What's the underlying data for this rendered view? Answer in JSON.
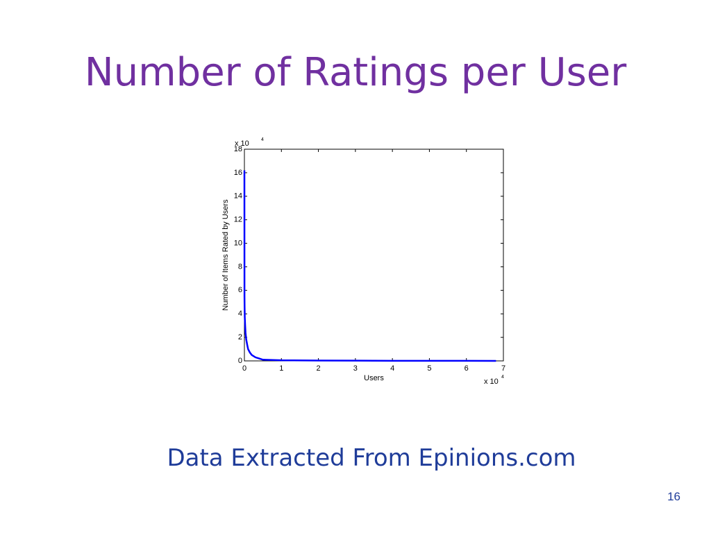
{
  "slide": {
    "title": "Number of Ratings per User",
    "caption": "Data Extracted From Epinions.com",
    "page_number": "16"
  },
  "chart_data": {
    "type": "line",
    "color": "#0000ff",
    "xlabel": "Users",
    "ylabel": "Number of Items Rated by Users",
    "x_multiplier": {
      "base": "x 10",
      "exponent": "4"
    },
    "y_multiplier": {
      "base": "x 10",
      "exponent": "4"
    },
    "x": [
      0,
      0.002,
      0.005,
      0.01,
      0.02,
      0.03,
      0.05,
      0.08,
      0.1,
      0.15,
      0.2,
      0.3,
      0.4,
      0.5,
      1,
      2,
      3,
      4,
      5,
      6,
      6.8
    ],
    "values": [
      16.2,
      5.5,
      4.6,
      3.7,
      3.0,
      2.4,
      1.8,
      1.3,
      1.0,
      0.7,
      0.5,
      0.3,
      0.2,
      0.1,
      0.05,
      0.03,
      0.02,
      0.01,
      0.01,
      0.005,
      0.001
    ],
    "xlim": [
      0,
      7
    ],
    "xticks": [
      0,
      1,
      2,
      3,
      4,
      5,
      6,
      7
    ],
    "ylim": [
      0,
      18
    ],
    "yticks": [
      0,
      2,
      4,
      6,
      8,
      10,
      12,
      14,
      16,
      18
    ]
  }
}
